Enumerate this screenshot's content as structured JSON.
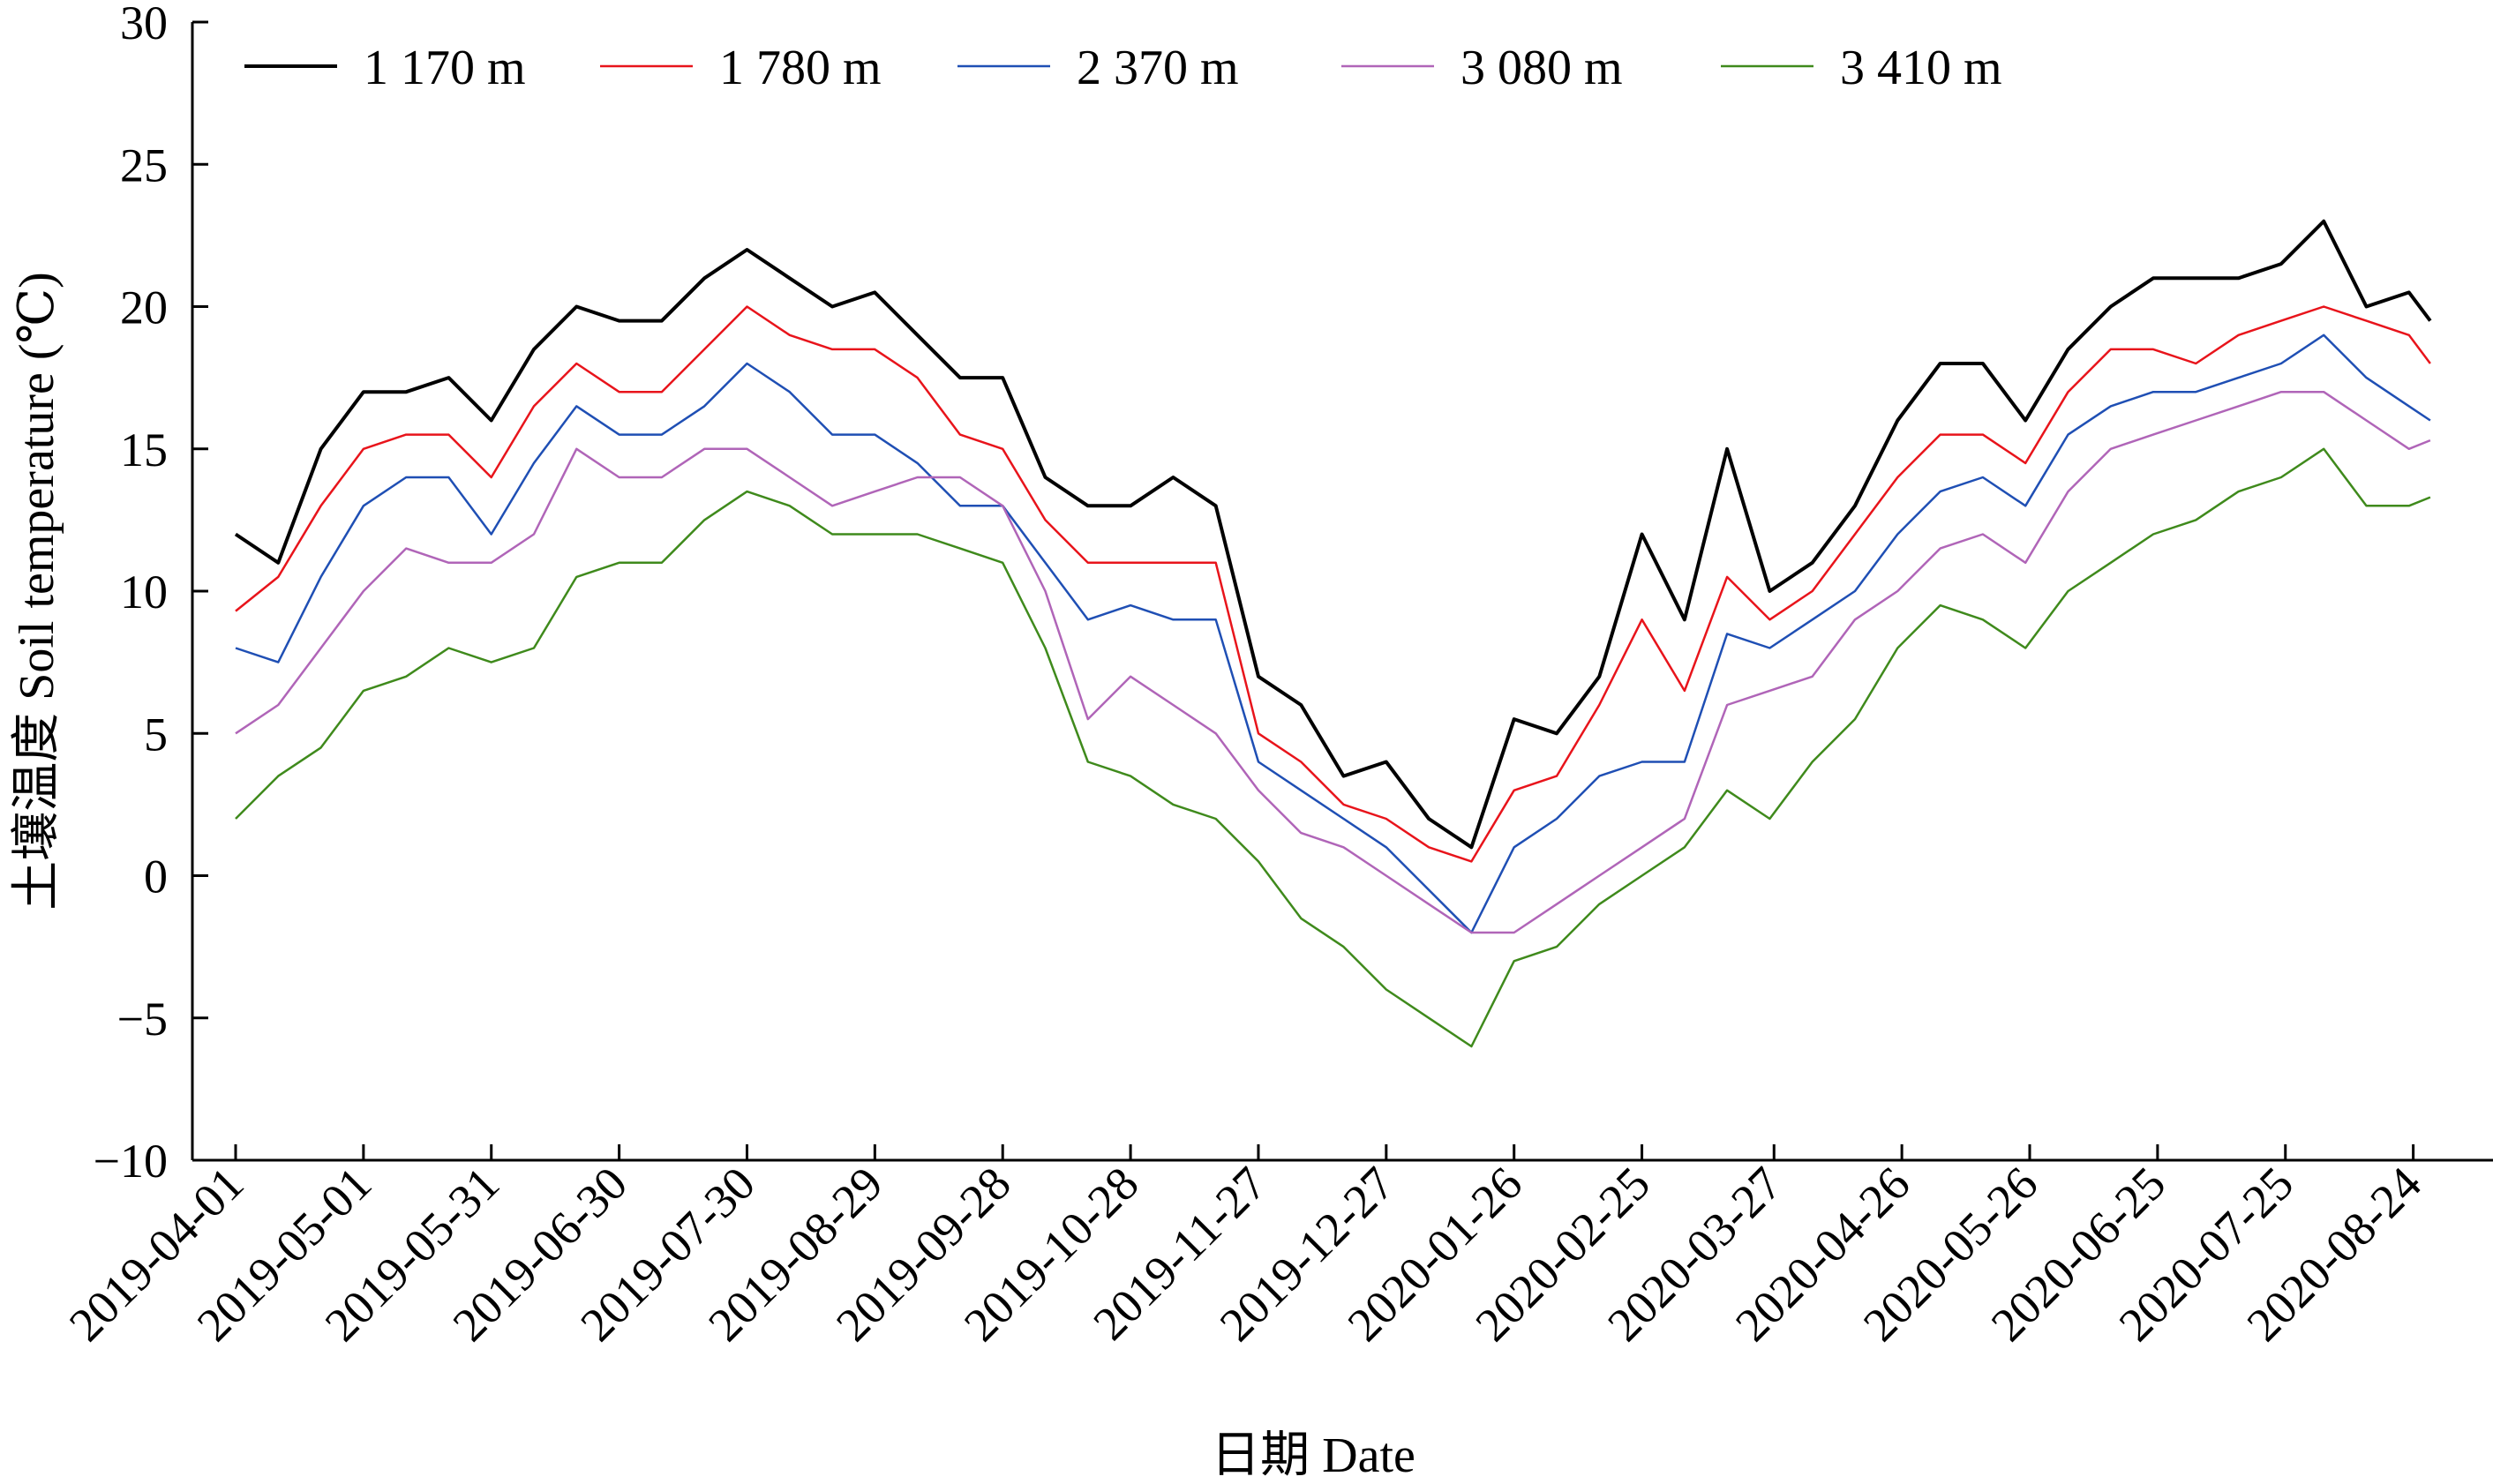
{
  "chart_data": {
    "type": "line",
    "title": "",
    "xlabel": "日期 Date",
    "ylabel": "土壤温度 Soil temperature (℃)",
    "ylim": [
      -10,
      30
    ],
    "yticks": [
      30,
      25,
      20,
      15,
      10,
      5,
      0,
      -5,
      -10
    ],
    "ytick_labels": [
      "30",
      "25",
      "20",
      "15",
      "10",
      "5",
      "0",
      "−5",
      "−10"
    ],
    "xtick_labels": [
      "2019-04-01",
      "2019-05-01",
      "2019-05-31",
      "2019-06-30",
      "2019-07-30",
      "2019-08-29",
      "2019-09-28",
      "2019-10-28",
      "2019-11-27",
      "2019-12-27",
      "2020-01-26",
      "2020-02-25",
      "2020-03-27",
      "2020-04-26",
      "2020-05-26",
      "2020-06-25",
      "2020-07-25",
      "2020-08-24"
    ],
    "xtick_days": [
      0,
      30,
      60,
      90,
      120,
      150,
      180,
      210,
      240,
      270,
      300,
      330,
      361,
      391,
      421,
      451,
      481,
      511
    ],
    "x_days": [
      0,
      10,
      20,
      30,
      40,
      50,
      60,
      70,
      80,
      90,
      100,
      110,
      120,
      130,
      140,
      150,
      160,
      170,
      180,
      190,
      200,
      210,
      220,
      230,
      240,
      250,
      260,
      270,
      280,
      290,
      300,
      310,
      320,
      330,
      340,
      350,
      360,
      370,
      380,
      390,
      400,
      410,
      420,
      430,
      440,
      450,
      460,
      470,
      480,
      490,
      500,
      510,
      515
    ],
    "grid": false,
    "legend_position": "top",
    "series": [
      {
        "name": "1 170 m",
        "color": "#000000",
        "values": [
          12,
          11,
          15,
          17,
          17,
          17.5,
          16,
          18.5,
          20,
          19.5,
          19.5,
          21,
          22,
          21,
          20,
          20.5,
          19,
          17.5,
          17.5,
          14,
          13,
          13,
          14,
          13,
          7,
          6,
          3.5,
          4,
          2,
          1,
          5.5,
          5,
          7,
          12,
          9,
          15,
          10,
          11,
          13,
          16,
          18,
          18,
          16,
          18.5,
          20,
          21,
          21,
          21,
          21.5,
          23,
          20,
          20.5,
          19.5
        ]
      },
      {
        "name": "1 780 m",
        "color": "#e8141b",
        "values": [
          9.3,
          10.5,
          13,
          15,
          15.5,
          15.5,
          14,
          16.5,
          18,
          17,
          17,
          18.5,
          20,
          19,
          18.5,
          18.5,
          17.5,
          15.5,
          15,
          12.5,
          11,
          11,
          11,
          11,
          5,
          4,
          2.5,
          2,
          1,
          0.5,
          3,
          3.5,
          6,
          9,
          6.5,
          10.5,
          9,
          10,
          12,
          14,
          15.5,
          15.5,
          14.5,
          17,
          18.5,
          18.5,
          18,
          19,
          19.5,
          20,
          19.5,
          19,
          18
        ]
      },
      {
        "name": "2 370 m",
        "color": "#1f4fb4",
        "values": [
          8,
          7.5,
          10.5,
          13,
          14,
          14,
          12,
          14.5,
          16.5,
          15.5,
          15.5,
          16.5,
          18,
          17,
          15.5,
          15.5,
          14.5,
          13,
          13,
          11,
          9,
          9.5,
          9,
          9,
          4,
          3,
          2,
          1,
          -0.5,
          -2,
          1,
          2,
          3.5,
          4,
          4,
          8.5,
          8,
          9,
          10,
          12,
          13.5,
          14,
          13,
          15.5,
          16.5,
          17,
          17,
          17.5,
          18,
          19,
          17.5,
          16.5,
          16
        ]
      },
      {
        "name": "3 080 m",
        "color": "#b065b8",
        "values": [
          5,
          6,
          8,
          10,
          11.5,
          11,
          11,
          12,
          15,
          14,
          14,
          15,
          15,
          14,
          13,
          13.5,
          14,
          14,
          13,
          10,
          5.5,
          7,
          6,
          5,
          3,
          1.5,
          1,
          0,
          -1,
          -2,
          -2,
          -1,
          0,
          1,
          2,
          6,
          6.5,
          7,
          9,
          10,
          11.5,
          12,
          11,
          13.5,
          15,
          15.5,
          16,
          16.5,
          17,
          17,
          16,
          15,
          15.3
        ]
      },
      {
        "name": "3 410 m",
        "color": "#3f8a1c",
        "values": [
          2,
          3.5,
          4.5,
          6.5,
          7,
          8,
          7.5,
          8,
          10.5,
          11,
          11,
          12.5,
          13.5,
          13,
          12,
          12,
          12,
          11.5,
          11,
          8,
          4,
          3.5,
          2.5,
          2,
          0.5,
          -1.5,
          -2.5,
          -4,
          -5,
          -6,
          -3,
          -2.5,
          -1,
          0,
          1,
          3,
          2,
          4,
          5.5,
          8,
          9.5,
          9,
          8,
          10,
          11,
          12,
          12.5,
          13.5,
          14,
          15,
          13,
          13,
          13.3
        ]
      }
    ]
  }
}
